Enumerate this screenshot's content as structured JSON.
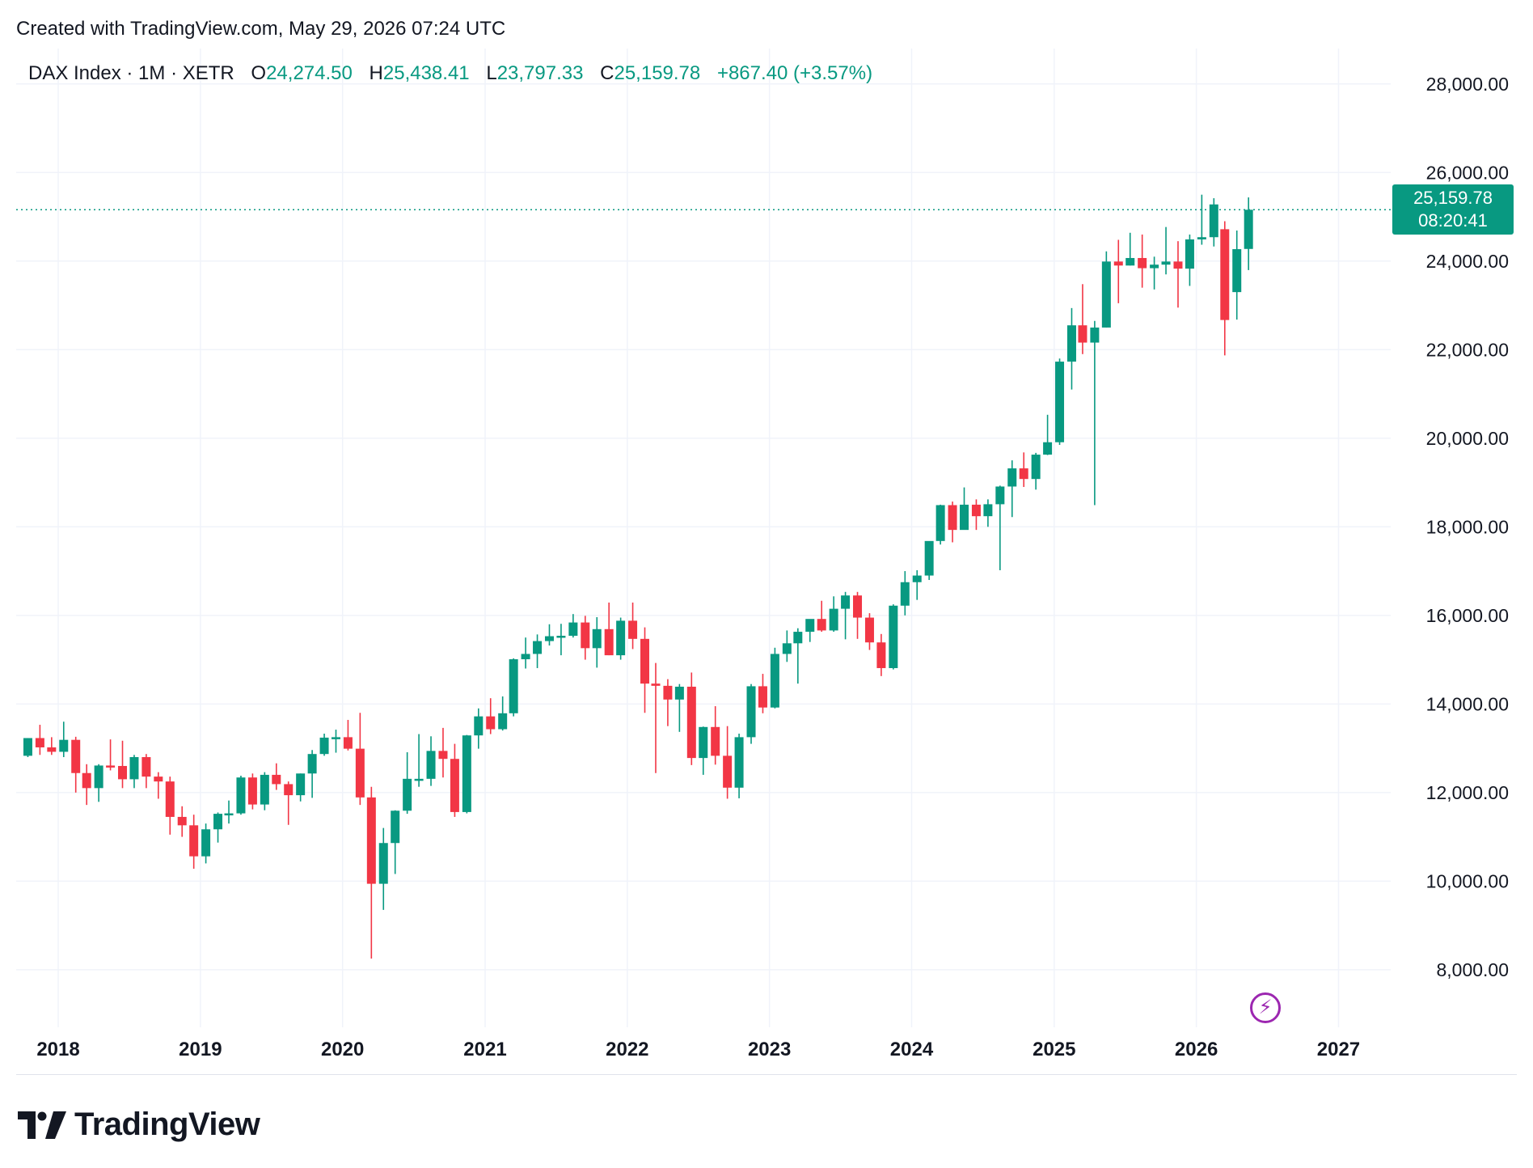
{
  "header": {
    "text": "Created with TradingView.com, May 29, 2026 07:24 UTC"
  },
  "legend": {
    "symbol": "DAX Index · 1M · XETR",
    "open_label": "O",
    "open": "24,274.50",
    "high_label": "H",
    "high": "25,438.41",
    "low_label": "L",
    "low": "23,797.33",
    "close_label": "C",
    "close": "25,159.78",
    "change": "+867.40 (+3.57%)"
  },
  "price_tag": {
    "price": "25,159.78",
    "countdown": "08:20:41"
  },
  "footer": {
    "brand": "TradingView",
    "logo_icon": "tradingview-logo-icon"
  },
  "flash_icon": "lightning-icon",
  "colors": {
    "up": "#089981",
    "down": "#f23645",
    "grid": "#f0f3fa",
    "text": "#131722"
  },
  "chart_data": {
    "type": "candlestick",
    "title": "",
    "xlabel": "",
    "ylabel": "",
    "ylim": [
      6700,
      28800
    ],
    "xlim": [
      "2017-09-15",
      "2027-05-15"
    ],
    "y_ticks": [
      8000,
      10000,
      12000,
      14000,
      16000,
      18000,
      20000,
      22000,
      24000,
      26000,
      28000
    ],
    "y_tick_labels": [
      "8,000.00",
      "10,000.00",
      "12,000.00",
      "14,000.00",
      "16,000.00",
      "18,000.00",
      "20,000.00",
      "22,000.00",
      "24,000.00",
      "26,000.00",
      "28,000.00"
    ],
    "x_ticks": [
      "2018",
      "2019",
      "2020",
      "2021",
      "2022",
      "2023",
      "2024",
      "2025",
      "2026",
      "2027"
    ],
    "last_price": 25159.78,
    "grid": true,
    "candles": [
      {
        "t": "2017-10",
        "o": 12830,
        "h": 13230,
        "l": 12800,
        "c": 13230
      },
      {
        "t": "2017-11",
        "o": 13230,
        "h": 13530,
        "l": 12850,
        "c": 13020
      },
      {
        "t": "2017-12",
        "o": 13020,
        "h": 13250,
        "l": 12850,
        "c": 12920
      },
      {
        "t": "2018-01",
        "o": 12920,
        "h": 13600,
        "l": 12800,
        "c": 13190
      },
      {
        "t": "2018-02",
        "o": 13190,
        "h": 13260,
        "l": 12000,
        "c": 12440
      },
      {
        "t": "2018-03",
        "o": 12440,
        "h": 12640,
        "l": 11720,
        "c": 12100
      },
      {
        "t": "2018-04",
        "o": 12100,
        "h": 12640,
        "l": 11790,
        "c": 12610
      },
      {
        "t": "2018-05",
        "o": 12610,
        "h": 13200,
        "l": 12500,
        "c": 12600
      },
      {
        "t": "2018-06",
        "o": 12600,
        "h": 13170,
        "l": 12100,
        "c": 12300
      },
      {
        "t": "2018-07",
        "o": 12300,
        "h": 12850,
        "l": 12100,
        "c": 12800
      },
      {
        "t": "2018-08",
        "o": 12800,
        "h": 12870,
        "l": 12100,
        "c": 12360
      },
      {
        "t": "2018-09",
        "o": 12360,
        "h": 12460,
        "l": 11860,
        "c": 12250
      },
      {
        "t": "2018-10",
        "o": 12250,
        "h": 12360,
        "l": 11050,
        "c": 11450
      },
      {
        "t": "2018-11",
        "o": 11450,
        "h": 11690,
        "l": 11000,
        "c": 11260
      },
      {
        "t": "2018-12",
        "o": 11260,
        "h": 11500,
        "l": 10280,
        "c": 10560
      },
      {
        "t": "2019-01",
        "o": 10560,
        "h": 11300,
        "l": 10400,
        "c": 11170
      },
      {
        "t": "2019-02",
        "o": 11170,
        "h": 11550,
        "l": 10870,
        "c": 11520
      },
      {
        "t": "2019-03",
        "o": 11520,
        "h": 11820,
        "l": 11300,
        "c": 11530
      },
      {
        "t": "2019-04",
        "o": 11530,
        "h": 12380,
        "l": 11500,
        "c": 12340
      },
      {
        "t": "2019-05",
        "o": 12340,
        "h": 12430,
        "l": 11620,
        "c": 11730
      },
      {
        "t": "2019-06",
        "o": 11730,
        "h": 12460,
        "l": 11600,
        "c": 12400
      },
      {
        "t": "2019-07",
        "o": 12400,
        "h": 12660,
        "l": 12060,
        "c": 12190
      },
      {
        "t": "2019-08",
        "o": 12190,
        "h": 12250,
        "l": 11270,
        "c": 11940
      },
      {
        "t": "2019-09",
        "o": 11940,
        "h": 12430,
        "l": 11800,
        "c": 12430
      },
      {
        "t": "2019-10",
        "o": 12430,
        "h": 12960,
        "l": 11880,
        "c": 12870
      },
      {
        "t": "2019-11",
        "o": 12870,
        "h": 13330,
        "l": 12830,
        "c": 13240
      },
      {
        "t": "2019-12",
        "o": 13240,
        "h": 13420,
        "l": 12900,
        "c": 13250
      },
      {
        "t": "2020-01",
        "o": 13250,
        "h": 13640,
        "l": 12950,
        "c": 12990
      },
      {
        "t": "2020-02",
        "o": 12990,
        "h": 13800,
        "l": 11720,
        "c": 11890
      },
      {
        "t": "2020-03",
        "o": 11890,
        "h": 12130,
        "l": 8250,
        "c": 9940
      },
      {
        "t": "2020-04",
        "o": 9940,
        "h": 11200,
        "l": 9350,
        "c": 10860
      },
      {
        "t": "2020-05",
        "o": 10860,
        "h": 11600,
        "l": 10160,
        "c": 11590
      },
      {
        "t": "2020-06",
        "o": 11590,
        "h": 12910,
        "l": 11520,
        "c": 12310
      },
      {
        "t": "2020-07",
        "o": 12310,
        "h": 13320,
        "l": 12130,
        "c": 12310
      },
      {
        "t": "2020-08",
        "o": 12310,
        "h": 13270,
        "l": 12150,
        "c": 12940
      },
      {
        "t": "2020-09",
        "o": 12940,
        "h": 13460,
        "l": 12340,
        "c": 12760
      },
      {
        "t": "2020-10",
        "o": 12760,
        "h": 13100,
        "l": 11450,
        "c": 11560
      },
      {
        "t": "2020-11",
        "o": 11560,
        "h": 13300,
        "l": 11530,
        "c": 13290
      },
      {
        "t": "2020-12",
        "o": 13290,
        "h": 13900,
        "l": 12990,
        "c": 13720
      },
      {
        "t": "2021-01",
        "o": 13720,
        "h": 14130,
        "l": 13320,
        "c": 13430
      },
      {
        "t": "2021-02",
        "o": 13430,
        "h": 14170,
        "l": 13400,
        "c": 13790
      },
      {
        "t": "2021-03",
        "o": 13790,
        "h": 15030,
        "l": 13720,
        "c": 15010
      },
      {
        "t": "2021-04",
        "o": 15010,
        "h": 15500,
        "l": 14800,
        "c": 15130
      },
      {
        "t": "2021-05",
        "o": 15130,
        "h": 15570,
        "l": 14810,
        "c": 15420
      },
      {
        "t": "2021-06",
        "o": 15420,
        "h": 15800,
        "l": 15320,
        "c": 15530
      },
      {
        "t": "2021-07",
        "o": 15530,
        "h": 15810,
        "l": 15100,
        "c": 15540
      },
      {
        "t": "2021-08",
        "o": 15540,
        "h": 16030,
        "l": 15500,
        "c": 15840
      },
      {
        "t": "2021-09",
        "o": 15840,
        "h": 15990,
        "l": 15000,
        "c": 15260
      },
      {
        "t": "2021-10",
        "o": 15260,
        "h": 15960,
        "l": 14820,
        "c": 15690
      },
      {
        "t": "2021-11",
        "o": 15690,
        "h": 16290,
        "l": 15100,
        "c": 15100
      },
      {
        "t": "2021-12",
        "o": 15100,
        "h": 15950,
        "l": 15000,
        "c": 15880
      },
      {
        "t": "2022-01",
        "o": 15880,
        "h": 16290,
        "l": 15240,
        "c": 15470
      },
      {
        "t": "2022-02",
        "o": 15470,
        "h": 15730,
        "l": 13800,
        "c": 14460
      },
      {
        "t": "2022-03",
        "o": 14460,
        "h": 14925,
        "l": 12440,
        "c": 14410
      },
      {
        "t": "2022-04",
        "o": 14410,
        "h": 14560,
        "l": 13500,
        "c": 14100
      },
      {
        "t": "2022-05",
        "o": 14100,
        "h": 14450,
        "l": 13370,
        "c": 14390
      },
      {
        "t": "2022-06",
        "o": 14390,
        "h": 14710,
        "l": 12620,
        "c": 12780
      },
      {
        "t": "2022-07",
        "o": 12780,
        "h": 13490,
        "l": 12400,
        "c": 13480
      },
      {
        "t": "2022-08",
        "o": 13480,
        "h": 13950,
        "l": 12630,
        "c": 12830
      },
      {
        "t": "2022-09",
        "o": 12830,
        "h": 13500,
        "l": 11860,
        "c": 12110
      },
      {
        "t": "2022-10",
        "o": 12110,
        "h": 13330,
        "l": 11870,
        "c": 13250
      },
      {
        "t": "2022-11",
        "o": 13250,
        "h": 14450,
        "l": 13100,
        "c": 14400
      },
      {
        "t": "2022-12",
        "o": 14400,
        "h": 14680,
        "l": 13790,
        "c": 13920
      },
      {
        "t": "2023-01",
        "o": 13920,
        "h": 15270,
        "l": 13900,
        "c": 15130
      },
      {
        "t": "2023-02",
        "o": 15130,
        "h": 15660,
        "l": 14950,
        "c": 15370
      },
      {
        "t": "2023-03",
        "o": 15370,
        "h": 15710,
        "l": 14460,
        "c": 15630
      },
      {
        "t": "2023-04",
        "o": 15630,
        "h": 15900,
        "l": 15400,
        "c": 15920
      },
      {
        "t": "2023-05",
        "o": 15920,
        "h": 16330,
        "l": 15630,
        "c": 15660
      },
      {
        "t": "2023-06",
        "o": 15660,
        "h": 16430,
        "l": 15630,
        "c": 16150
      },
      {
        "t": "2023-07",
        "o": 16150,
        "h": 16530,
        "l": 15460,
        "c": 16450
      },
      {
        "t": "2023-08",
        "o": 16450,
        "h": 16530,
        "l": 15470,
        "c": 15950
      },
      {
        "t": "2023-09",
        "o": 15950,
        "h": 16050,
        "l": 15220,
        "c": 15390
      },
      {
        "t": "2023-10",
        "o": 15390,
        "h": 15580,
        "l": 14630,
        "c": 14810
      },
      {
        "t": "2023-11",
        "o": 14810,
        "h": 16250,
        "l": 14780,
        "c": 16220
      },
      {
        "t": "2023-12",
        "o": 16220,
        "h": 17000,
        "l": 16000,
        "c": 16750
      },
      {
        "t": "2024-01",
        "o": 16750,
        "h": 17020,
        "l": 16350,
        "c": 16900
      },
      {
        "t": "2024-02",
        "o": 16900,
        "h": 17650,
        "l": 16800,
        "c": 17680
      },
      {
        "t": "2024-03",
        "o": 17680,
        "h": 18500,
        "l": 17600,
        "c": 18490
      },
      {
        "t": "2024-04",
        "o": 18490,
        "h": 18570,
        "l": 17650,
        "c": 17930
      },
      {
        "t": "2024-05",
        "o": 17930,
        "h": 18890,
        "l": 17960,
        "c": 18500
      },
      {
        "t": "2024-06",
        "o": 18500,
        "h": 18620,
        "l": 17930,
        "c": 18240
      },
      {
        "t": "2024-07",
        "o": 18240,
        "h": 18620,
        "l": 18000,
        "c": 18510
      },
      {
        "t": "2024-08",
        "o": 18510,
        "h": 18930,
        "l": 17020,
        "c": 18910
      },
      {
        "t": "2024-09",
        "o": 18910,
        "h": 19500,
        "l": 18220,
        "c": 19320
      },
      {
        "t": "2024-10",
        "o": 19320,
        "h": 19680,
        "l": 18900,
        "c": 19080
      },
      {
        "t": "2024-11",
        "o": 19080,
        "h": 19670,
        "l": 18840,
        "c": 19630
      },
      {
        "t": "2024-12",
        "o": 19630,
        "h": 20530,
        "l": 19620,
        "c": 19910
      },
      {
        "t": "2025-01",
        "o": 19910,
        "h": 21800,
        "l": 19850,
        "c": 21730
      },
      {
        "t": "2025-02",
        "o": 21730,
        "h": 22940,
        "l": 21100,
        "c": 22550
      },
      {
        "t": "2025-03",
        "o": 22550,
        "h": 23480,
        "l": 21900,
        "c": 22160
      },
      {
        "t": "2025-04",
        "o": 22160,
        "h": 22650,
        "l": 18490,
        "c": 22500
      },
      {
        "t": "2025-05",
        "o": 22500,
        "h": 24220,
        "l": 22500,
        "c": 23990
      },
      {
        "t": "2025-06",
        "o": 23990,
        "h": 24480,
        "l": 23050,
        "c": 23900
      },
      {
        "t": "2025-07",
        "o": 23900,
        "h": 24640,
        "l": 23900,
        "c": 24070
      },
      {
        "t": "2025-08",
        "o": 24070,
        "h": 24600,
        "l": 23400,
        "c": 23840
      },
      {
        "t": "2025-09",
        "o": 23840,
        "h": 24100,
        "l": 23360,
        "c": 23920
      },
      {
        "t": "2025-10",
        "o": 23920,
        "h": 24770,
        "l": 23700,
        "c": 23990
      },
      {
        "t": "2025-11",
        "o": 23990,
        "h": 24450,
        "l": 22950,
        "c": 23830
      },
      {
        "t": "2025-12",
        "o": 23830,
        "h": 24600,
        "l": 23440,
        "c": 24490
      },
      {
        "t": "2026-01",
        "o": 24490,
        "h": 25500,
        "l": 24370,
        "c": 24540
      },
      {
        "t": "2026-02",
        "o": 24540,
        "h": 25420,
        "l": 24330,
        "c": 25280
      },
      {
        "t": "2026-03",
        "o": 24720,
        "h": 24900,
        "l": 21870,
        "c": 22670
      },
      {
        "t": "2026-04",
        "o": 23300,
        "h": 24690,
        "l": 22680,
        "c": 24270
      },
      {
        "t": "2026-05",
        "o": 24274.5,
        "h": 25438.41,
        "l": 23797.33,
        "c": 25159.78
      }
    ]
  }
}
